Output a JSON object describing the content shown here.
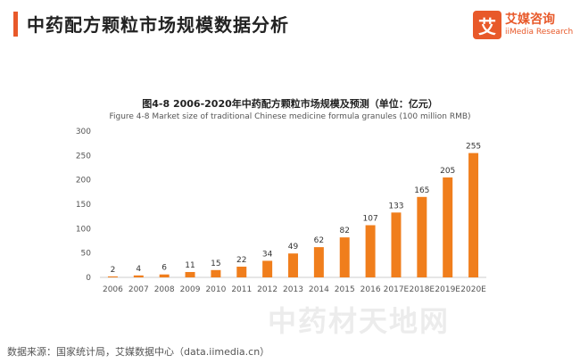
{
  "header": {
    "title": "中药配方颗粒市场规模数据分析",
    "logo_mark": "艾",
    "logo_cn": "艾媒咨询",
    "logo_en": "iiMedia Research"
  },
  "watermark": "中药材天地网",
  "footer": {
    "source": "数据来源：国家统计局，艾媒数据中心（data.iimedia.cn）"
  },
  "colors": {
    "accent": "#e8592a",
    "bar": "#f07e1c"
  },
  "chart_data": {
    "type": "bar",
    "title": "图4-8 2006-2020年中药配方颗粒市场规模及预测（单位：亿元）",
    "subtitle": "Figure 4-8 Market size of traditional Chinese medicine formula granules (100 million RMB)",
    "categories": [
      "2006",
      "2007",
      "2008",
      "2009",
      "2010",
      "2011",
      "2012",
      "2013",
      "2014",
      "2015",
      "2016",
      "2017E",
      "2018E",
      "2019E",
      "2020E"
    ],
    "values": [
      2,
      4,
      6,
      11,
      15,
      22,
      34,
      49,
      62,
      82,
      107,
      133,
      165,
      205,
      255
    ],
    "ylim": [
      0,
      300
    ],
    "yticks": [
      0,
      50,
      100,
      150,
      200,
      250,
      300
    ],
    "grid": false,
    "xlabel": "",
    "ylabel": ""
  }
}
